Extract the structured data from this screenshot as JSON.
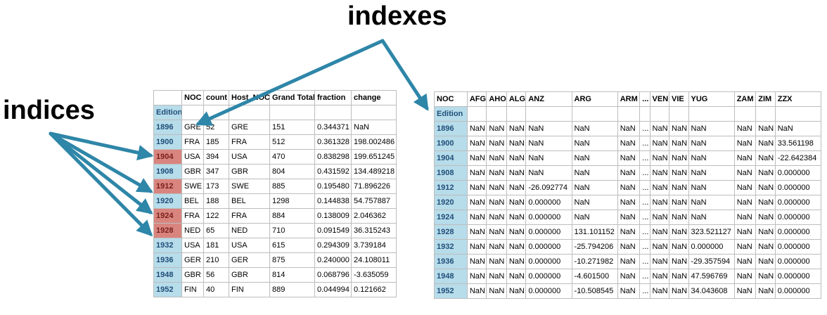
{
  "labels": {
    "indexes": "indexes",
    "indices": "indices"
  },
  "colors": {
    "index_blue": "#b7dcea",
    "index_red": "#d9857f",
    "arrow": "#2e86a8"
  },
  "left_table": {
    "columns": [
      "",
      "NOC",
      "count",
      "Host_NOC",
      "Grand Total",
      "fraction",
      "change"
    ],
    "index_name": "Edition",
    "rows": [
      {
        "index": "1896",
        "highlight": false,
        "cells": [
          "GRE",
          "52",
          "GRE",
          "151",
          "0.344371",
          "NaN"
        ]
      },
      {
        "index": "1900",
        "highlight": false,
        "cells": [
          "FRA",
          "185",
          "FRA",
          "512",
          "0.361328",
          "198.002486"
        ]
      },
      {
        "index": "1904",
        "highlight": true,
        "cells": [
          "USA",
          "394",
          "USA",
          "470",
          "0.838298",
          "199.651245"
        ]
      },
      {
        "index": "1908",
        "highlight": false,
        "cells": [
          "GBR",
          "347",
          "GBR",
          "804",
          "0.431592",
          "134.489218"
        ]
      },
      {
        "index": "1912",
        "highlight": true,
        "cells": [
          "SWE",
          "173",
          "SWE",
          "885",
          "0.195480",
          "71.896226"
        ]
      },
      {
        "index": "1920",
        "highlight": false,
        "cells": [
          "BEL",
          "188",
          "BEL",
          "1298",
          "0.144838",
          "54.757887"
        ]
      },
      {
        "index": "1924",
        "highlight": true,
        "cells": [
          "FRA",
          "122",
          "FRA",
          "884",
          "0.138009",
          "2.046362"
        ]
      },
      {
        "index": "1928",
        "highlight": true,
        "cells": [
          "NED",
          "65",
          "NED",
          "710",
          "0.091549",
          "36.315243"
        ]
      },
      {
        "index": "1932",
        "highlight": false,
        "cells": [
          "USA",
          "181",
          "USA",
          "615",
          "0.294309",
          "3.739184"
        ]
      },
      {
        "index": "1936",
        "highlight": false,
        "cells": [
          "GER",
          "210",
          "GER",
          "875",
          "0.240000",
          "24.108011"
        ]
      },
      {
        "index": "1948",
        "highlight": false,
        "cells": [
          "GBR",
          "56",
          "GBR",
          "814",
          "0.068796",
          "-3.635059"
        ]
      },
      {
        "index": "1952",
        "highlight": false,
        "cells": [
          "FIN",
          "40",
          "FIN",
          "889",
          "0.044994",
          "0.121662"
        ]
      }
    ]
  },
  "right_table": {
    "columns": [
      "NOC",
      "AFG",
      "AHO",
      "ALG",
      "ANZ",
      "ARG",
      "ARM",
      "...",
      "VEN",
      "VIE",
      "YUG",
      "ZAM",
      "ZIM",
      "ZZX"
    ],
    "index_name": "Edition",
    "rows": [
      {
        "index": "1896",
        "cells": [
          "NaN",
          "NaN",
          "NaN",
          "NaN",
          "NaN",
          "NaN",
          "...",
          "NaN",
          "NaN",
          "NaN",
          "NaN",
          "NaN",
          "NaN"
        ]
      },
      {
        "index": "1900",
        "cells": [
          "NaN",
          "NaN",
          "NaN",
          "NaN",
          "NaN",
          "NaN",
          "...",
          "NaN",
          "NaN",
          "NaN",
          "NaN",
          "NaN",
          "33.561198"
        ]
      },
      {
        "index": "1904",
        "cells": [
          "NaN",
          "NaN",
          "NaN",
          "NaN",
          "NaN",
          "NaN",
          "...",
          "NaN",
          "NaN",
          "NaN",
          "NaN",
          "NaN",
          "-22.642384"
        ]
      },
      {
        "index": "1908",
        "cells": [
          "NaN",
          "NaN",
          "NaN",
          "NaN",
          "NaN",
          "NaN",
          "...",
          "NaN",
          "NaN",
          "NaN",
          "NaN",
          "NaN",
          "0.000000"
        ]
      },
      {
        "index": "1912",
        "cells": [
          "NaN",
          "NaN",
          "NaN",
          "-26.092774",
          "NaN",
          "NaN",
          "...",
          "NaN",
          "NaN",
          "NaN",
          "NaN",
          "NaN",
          "0.000000"
        ]
      },
      {
        "index": "1920",
        "cells": [
          "NaN",
          "NaN",
          "NaN",
          "0.000000",
          "NaN",
          "NaN",
          "...",
          "NaN",
          "NaN",
          "NaN",
          "NaN",
          "NaN",
          "0.000000"
        ]
      },
      {
        "index": "1924",
        "cells": [
          "NaN",
          "NaN",
          "NaN",
          "0.000000",
          "NaN",
          "NaN",
          "...",
          "NaN",
          "NaN",
          "NaN",
          "NaN",
          "NaN",
          "0.000000"
        ]
      },
      {
        "index": "1928",
        "cells": [
          "NaN",
          "NaN",
          "NaN",
          "0.000000",
          "131.101152",
          "NaN",
          "...",
          "NaN",
          "NaN",
          "323.521127",
          "NaN",
          "NaN",
          "0.000000"
        ]
      },
      {
        "index": "1932",
        "cells": [
          "NaN",
          "NaN",
          "NaN",
          "0.000000",
          "-25.794206",
          "NaN",
          "...",
          "NaN",
          "NaN",
          "0.000000",
          "NaN",
          "NaN",
          "0.000000"
        ]
      },
      {
        "index": "1936",
        "cells": [
          "NaN",
          "NaN",
          "NaN",
          "0.000000",
          "-10.271982",
          "NaN",
          "...",
          "NaN",
          "NaN",
          "-29.357594",
          "NaN",
          "NaN",
          "0.000000"
        ]
      },
      {
        "index": "1948",
        "cells": [
          "NaN",
          "NaN",
          "NaN",
          "0.000000",
          "-4.601500",
          "NaN",
          "...",
          "NaN",
          "NaN",
          "47.596769",
          "NaN",
          "NaN",
          "0.000000"
        ]
      },
      {
        "index": "1952",
        "cells": [
          "NaN",
          "NaN",
          "NaN",
          "0.000000",
          "-10.508545",
          "NaN",
          "...",
          "NaN",
          "NaN",
          "34.043608",
          "NaN",
          "NaN",
          "0.000000"
        ]
      }
    ]
  }
}
